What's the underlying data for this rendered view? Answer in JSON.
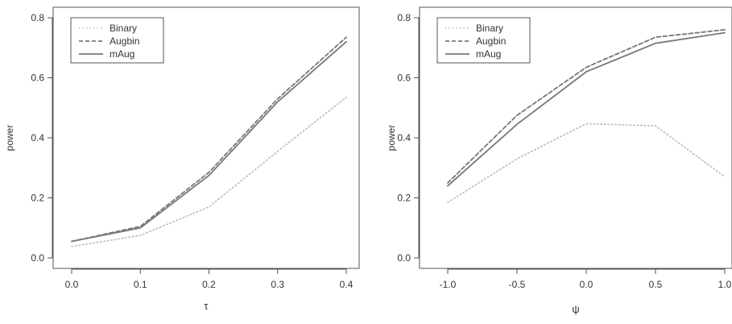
{
  "chart_data": [
    {
      "type": "line",
      "xlabel": "τ",
      "ylabel": "power",
      "x": [
        0.0,
        0.1,
        0.2,
        0.3,
        0.4
      ],
      "xticks": [
        "0.0",
        "0.1",
        "0.2",
        "0.3",
        "0.4"
      ],
      "xlim": [
        0.0,
        0.4
      ],
      "ylim": [
        0.0,
        0.8
      ],
      "yticks": [
        "0.0",
        "0.2",
        "0.4",
        "0.6",
        "0.8"
      ],
      "legend_position": "top-left",
      "series": [
        {
          "name": "Binary",
          "style": "dotted",
          "color": "#bbbbbb",
          "values": [
            0.038,
            0.075,
            0.17,
            0.355,
            0.535
          ]
        },
        {
          "name": "Augbin",
          "style": "dashed",
          "color": "#777777",
          "values": [
            0.055,
            0.105,
            0.285,
            0.53,
            0.735
          ]
        },
        {
          "name": "mAug",
          "style": "solid",
          "color": "#777777",
          "values": [
            0.055,
            0.1,
            0.275,
            0.52,
            0.72
          ]
        }
      ]
    },
    {
      "type": "line",
      "xlabel": "ψ",
      "ylabel": "power",
      "x": [
        -1.0,
        -0.5,
        0.0,
        0.5,
        1.0
      ],
      "xticks": [
        "-1.0",
        "-0.5",
        "0.0",
        "0.5",
        "1.0"
      ],
      "xlim": [
        -1.0,
        1.0
      ],
      "ylim": [
        0.0,
        0.8
      ],
      "yticks": [
        "0.0",
        "0.2",
        "0.4",
        "0.6",
        "0.8"
      ],
      "legend_position": "top-left",
      "series": [
        {
          "name": "Binary",
          "style": "dotted",
          "color": "#bbbbbb",
          "values": [
            0.185,
            0.33,
            0.447,
            0.44,
            0.27
          ]
        },
        {
          "name": "Augbin",
          "style": "dashed",
          "color": "#777777",
          "values": [
            0.25,
            0.475,
            0.635,
            0.735,
            0.76
          ]
        },
        {
          "name": "mAug",
          "style": "solid",
          "color": "#777777",
          "values": [
            0.24,
            0.445,
            0.62,
            0.715,
            0.75
          ]
        }
      ]
    }
  ]
}
